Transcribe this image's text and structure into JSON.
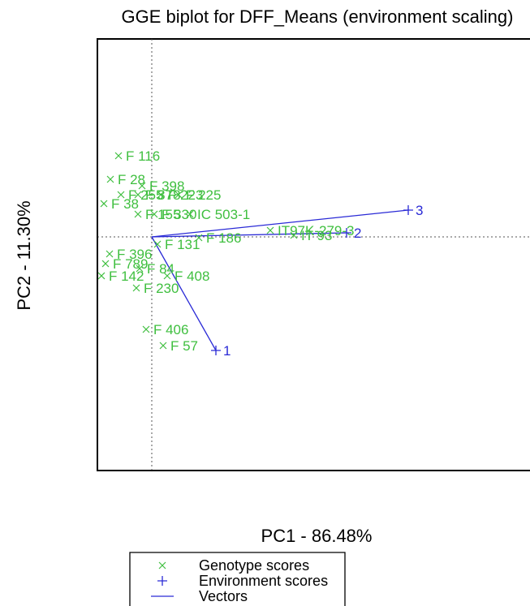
{
  "chart_data": {
    "type": "scatter",
    "title": "GGE biplot for DFF_Means (environment scaling)",
    "xlabel": "PC1 - 86.48%",
    "ylabel": "PC2 - 11.30%",
    "xlim": [
      -1.36,
      9.52
    ],
    "ylim": [
      -5.78,
      4.9
    ],
    "grid": false,
    "reference_lines": {
      "x": 0,
      "y": 0,
      "style": "dotted"
    },
    "legend_placement": "bottom",
    "colors": {
      "genotype": "#3fbf3f",
      "environment": "#2a2ad6",
      "frame": "#000000",
      "reference": "#555555"
    },
    "series": [
      {
        "name": "Genotype scores",
        "marker": "cross",
        "points": [
          {
            "label": "F 116",
            "x": -0.82,
            "y": 2.0
          },
          {
            "label": "F 28",
            "x": -1.02,
            "y": 1.42
          },
          {
            "label": "F 398",
            "x": -0.24,
            "y": 1.26
          },
          {
            "label": "F 38",
            "x": -1.18,
            "y": 0.82
          },
          {
            "label": "F 255",
            "x": -0.76,
            "y": 1.04
          },
          {
            "label": "F 378",
            "x": -0.34,
            "y": 1.04
          },
          {
            "label": "F 223",
            "x": 0.22,
            "y": 1.04
          },
          {
            "label": "F 225",
            "x": 0.66,
            "y": 1.04
          },
          {
            "label": "F 155",
            "x": -0.34,
            "y": 0.56
          },
          {
            "label": "F 330",
            "x": 0.06,
            "y": 0.56
          },
          {
            "label": "IC 503-1",
            "x": 0.94,
            "y": 0.56
          },
          {
            "label": "F 131",
            "x": 0.14,
            "y": -0.18
          },
          {
            "label": "F 186",
            "x": 1.16,
            "y": -0.02
          },
          {
            "label": "IT97K-279-3",
            "x": 2.92,
            "y": 0.16
          },
          {
            "label": "IT 93",
            "x": 3.5,
            "y": 0.04
          },
          {
            "label": "F 396",
            "x": -1.04,
            "y": -0.42
          },
          {
            "label": "F 789",
            "x": -1.14,
            "y": -0.66
          },
          {
            "label": "F 84",
            "x": -0.3,
            "y": -0.78
          },
          {
            "label": "F 142",
            "x": -1.24,
            "y": -0.96
          },
          {
            "label": "F 408",
            "x": 0.38,
            "y": -0.96
          },
          {
            "label": "F 230",
            "x": -0.38,
            "y": -1.26
          },
          {
            "label": "F 406",
            "x": -0.14,
            "y": -2.28
          },
          {
            "label": "F 57",
            "x": 0.28,
            "y": -2.68
          }
        ]
      },
      {
        "name": "Environment scores",
        "marker": "plus",
        "points": [
          {
            "label": "1",
            "x": 1.58,
            "y": -2.8
          },
          {
            "label": "2",
            "x": 4.8,
            "y": 0.1
          },
          {
            "label": "3",
            "x": 6.32,
            "y": 0.66
          }
        ]
      }
    ],
    "vectors": {
      "name": "Vectors",
      "from": [
        0,
        0
      ],
      "to_series": "Environment scores"
    }
  }
}
